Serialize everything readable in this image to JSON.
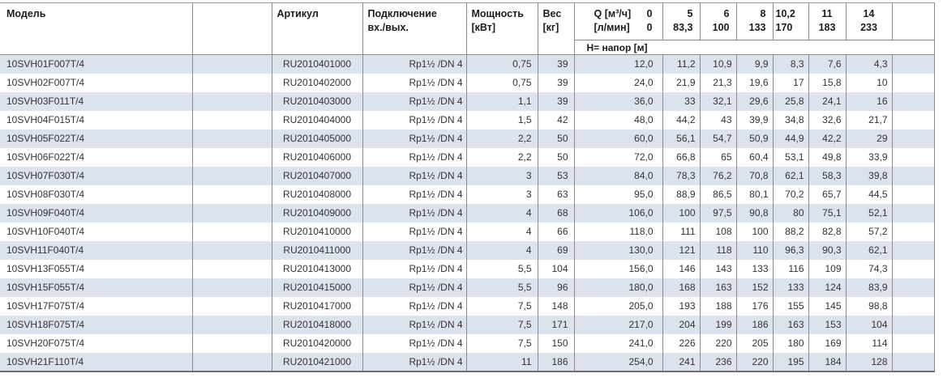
{
  "colors": {
    "row_alt": "#dce3ed",
    "grid_border": "#8b8b8b",
    "table_top_border": "#9a9a9a",
    "table_bottom_border": "#6f6f6f",
    "header_text": "#1c1c1c",
    "body_text": "#333333"
  },
  "table": {
    "headers": {
      "model": "Модель",
      "article": "Артикул",
      "connection_line1": "Подключение",
      "connection_line2": "вх./вых.",
      "power_line1": "Мощность",
      "power_line2": "[кВт]",
      "weight_line1": "Вес",
      "weight_line2": "[кг]",
      "q_label_line1": "Q [м³/ч]",
      "q_value_line1": "0",
      "q_label_line2": "[л/мин]",
      "q_value_line2": "0",
      "head_row_label": "Н= напор [м]",
      "flow_columns": [
        {
          "m3h": "5",
          "lmin": "83,3"
        },
        {
          "m3h": "6",
          "lmin": "100"
        },
        {
          "m3h": "8",
          "lmin": "133"
        },
        {
          "m3h": "10,2",
          "lmin": "170"
        },
        {
          "m3h": "11",
          "lmin": "183"
        },
        {
          "m3h": "14",
          "lmin": "233"
        }
      ]
    },
    "rows": [
      {
        "model": "10SVH01F007T/4",
        "article": "RU2010401000",
        "connection": "Rp1½ /DN 4",
        "power_kw": "0,75",
        "weight_kg": "39",
        "heads_m": [
          "12,0",
          "11,2",
          "10,9",
          "9,9",
          "8,3",
          "7,6",
          "4,3"
        ]
      },
      {
        "model": "10SVH02F007T/4",
        "article": "RU2010402000",
        "connection": "Rp1½ /DN 4",
        "power_kw": "0,75",
        "weight_kg": "39",
        "heads_m": [
          "24,0",
          "21,9",
          "21,3",
          "19,6",
          "17",
          "15,8",
          "10"
        ]
      },
      {
        "model": "10SVH03F011T/4",
        "article": "RU2010403000",
        "connection": "Rp1½ /DN 4",
        "power_kw": "1,1",
        "weight_kg": "39",
        "heads_m": [
          "36,0",
          "33",
          "32,1",
          "29,6",
          "25,8",
          "24,1",
          "16"
        ]
      },
      {
        "model": "10SVH04F015T/4",
        "article": "RU2010404000",
        "connection": "Rp1½ /DN 4",
        "power_kw": "1,5",
        "weight_kg": "42",
        "heads_m": [
          "48,0",
          "44,2",
          "43",
          "39,9",
          "34,8",
          "32,6",
          "21,7"
        ]
      },
      {
        "model": "10SVH05F022T/4",
        "article": "RU2010405000",
        "connection": "Rp1½ /DN 4",
        "power_kw": "2,2",
        "weight_kg": "50",
        "heads_m": [
          "60,0",
          "56,1",
          "54,7",
          "50,9",
          "44,9",
          "42,2",
          "29"
        ]
      },
      {
        "model": "10SVH06F022T/4",
        "article": "RU2010406000",
        "connection": "Rp1½ /DN 4",
        "power_kw": "2,2",
        "weight_kg": "50",
        "heads_m": [
          "72,0",
          "66,8",
          "65",
          "60,4",
          "53,1",
          "49,8",
          "33,9"
        ]
      },
      {
        "model": "10SVH07F030T/4",
        "article": "RU2010407000",
        "connection": "Rp1½ /DN 4",
        "power_kw": "3",
        "weight_kg": "53",
        "heads_m": [
          "84,0",
          "78,3",
          "76,2",
          "70,8",
          "62,1",
          "58,3",
          "39,8"
        ]
      },
      {
        "model": "10SVH08F030T/4",
        "article": "RU2010408000",
        "connection": "Rp1½ /DN 4",
        "power_kw": "3",
        "weight_kg": "63",
        "heads_m": [
          "95,0",
          "88,9",
          "86,5",
          "80,1",
          "70,2",
          "65,7",
          "44,5"
        ]
      },
      {
        "model": "10SVH09F040T/4",
        "article": "RU2010409000",
        "connection": "Rp1½ /DN 4",
        "power_kw": "4",
        "weight_kg": "68",
        "heads_m": [
          "106,0",
          "100",
          "97,5",
          "90,8",
          "80",
          "75,1",
          "52,1"
        ]
      },
      {
        "model": "10SVH10F040T/4",
        "article": "RU2010410000",
        "connection": "Rp1½ /DN 4",
        "power_kw": "4",
        "weight_kg": "66",
        "heads_m": [
          "118,0",
          "111",
          "108",
          "100",
          "88,2",
          "82,8",
          "57,2"
        ]
      },
      {
        "model": "10SVH11F040T/4",
        "article": "RU2010411000",
        "connection": "Rp1½ /DN 4",
        "power_kw": "4",
        "weight_kg": "69",
        "heads_m": [
          "130,0",
          "121",
          "118",
          "110",
          "96,3",
          "90,3",
          "62,1"
        ]
      },
      {
        "model": "10SVH13F055T/4",
        "article": "RU2010413000",
        "connection": "Rp1½ /DN 4",
        "power_kw": "5,5",
        "weight_kg": "104",
        "heads_m": [
          "156,0",
          "146",
          "143",
          "133",
          "116",
          "109",
          "74,3"
        ]
      },
      {
        "model": "10SVH15F055T/4",
        "article": "RU2010415000",
        "connection": "Rp1½ /DN 4",
        "power_kw": "5,5",
        "weight_kg": "96",
        "heads_m": [
          "180,0",
          "168",
          "163",
          "152",
          "133",
          "124",
          "83,9"
        ]
      },
      {
        "model": "10SVH17F075T/4",
        "article": "RU2010417000",
        "connection": "Rp1½ /DN 4",
        "power_kw": "7,5",
        "weight_kg": "148",
        "heads_m": [
          "205,0",
          "193",
          "188",
          "176",
          "155",
          "145",
          "98,8"
        ]
      },
      {
        "model": "10SVH18F075T/4",
        "article": "RU2010418000",
        "connection": "Rp1½ /DN 4",
        "power_kw": "7,5",
        "weight_kg": "171",
        "heads_m": [
          "217,0",
          "204",
          "199",
          "186",
          "163",
          "153",
          "104"
        ]
      },
      {
        "model": "10SVH20F075T/4",
        "article": "RU2010420000",
        "connection": "Rp1½ /DN 4",
        "power_kw": "7,5",
        "weight_kg": "150",
        "heads_m": [
          "241,0",
          "226",
          "220",
          "205",
          "180",
          "169",
          "114"
        ]
      },
      {
        "model": "10SVH21F110T/4",
        "article": "RU2010421000",
        "connection": "Rp1½ /DN 4",
        "power_kw": "11",
        "weight_kg": "186",
        "heads_m": [
          "254,0",
          "241",
          "236",
          "220",
          "195",
          "184",
          "128"
        ]
      }
    ]
  }
}
